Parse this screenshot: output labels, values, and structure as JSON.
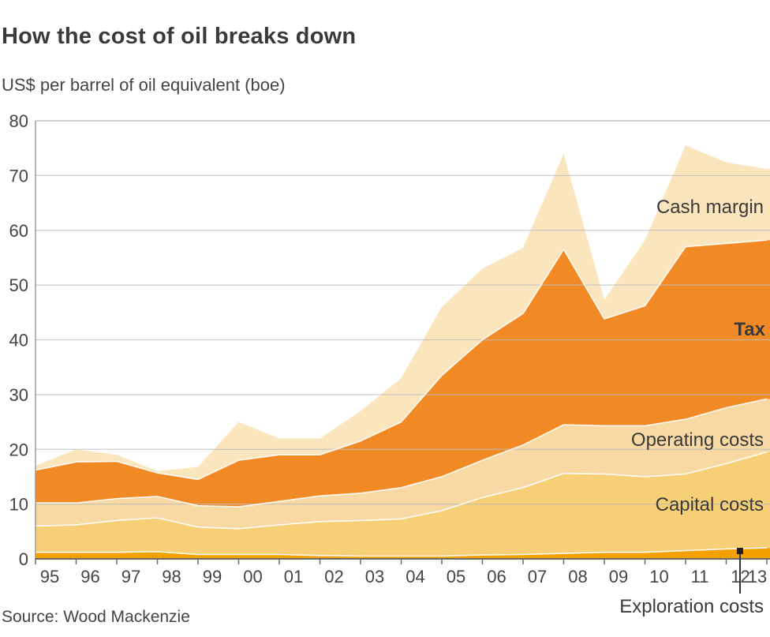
{
  "title": "How the cost of oil breaks down",
  "subtitle": "US$ per barrel of oil equivalent (boe)",
  "source": "Source: Wood Mackenzie",
  "colors": {
    "exploration": "#f2a100",
    "capital": "#f6cf76",
    "operating": "#f8d9a4",
    "tax": "#f18a24",
    "cash": "#fbe5bd",
    "grid": "#bdbdbd",
    "series_line": "#ffffff"
  },
  "chart_data": {
    "type": "area",
    "stacked": true,
    "x": [
      1995,
      1996,
      1997,
      1998,
      1999,
      2000,
      2001,
      2002,
      2003,
      2004,
      2005,
      2006,
      2007,
      2008,
      2009,
      2010,
      2011,
      2012,
      2013
    ],
    "x_tick_labels": [
      "95",
      "96",
      "97",
      "98",
      "99",
      "00",
      "01",
      "02",
      "03",
      "04",
      "05",
      "06",
      "07",
      "08",
      "09",
      "10",
      "11",
      "12",
      "13"
    ],
    "ylim": [
      0,
      80
    ],
    "y_ticks": [
      0,
      10,
      20,
      30,
      40,
      50,
      60,
      70,
      80
    ],
    "grid": true,
    "series": [
      {
        "name": "Exploration costs",
        "key": "exploration",
        "values": [
          1.2,
          1.2,
          1.2,
          1.3,
          0.8,
          0.8,
          0.8,
          0.6,
          0.5,
          0.5,
          0.5,
          0.7,
          0.8,
          1.0,
          1.2,
          1.2,
          1.5,
          1.8,
          2.0
        ]
      },
      {
        "name": "Capital costs",
        "key": "capital",
        "values": [
          4.8,
          5.0,
          5.8,
          6.2,
          5.0,
          4.7,
          5.4,
          6.2,
          6.5,
          6.8,
          8.3,
          10.5,
          12.2,
          14.6,
          14.3,
          13.8,
          14.0,
          15.6,
          17.5
        ]
      },
      {
        "name": "Operating costs",
        "key": "operating",
        "values": [
          4.2,
          4.0,
          4.0,
          3.9,
          3.9,
          4.0,
          4.3,
          4.7,
          5.0,
          5.7,
          6.2,
          6.8,
          7.8,
          8.9,
          8.8,
          9.3,
          10.0,
          10.2,
          9.7
        ]
      },
      {
        "name": "Tax",
        "key": "tax",
        "values": [
          6.0,
          7.5,
          6.8,
          4.3,
          4.8,
          8.5,
          8.5,
          7.5,
          9.5,
          12.0,
          18.5,
          22.0,
          24.0,
          32.0,
          19.5,
          21.9,
          31.5,
          30.0,
          29.0
        ]
      },
      {
        "name": "Cash margin",
        "key": "cash",
        "values": [
          0.8,
          2.3,
          1.2,
          0.3,
          2.3,
          7.0,
          3.0,
          3.0,
          5.5,
          8.0,
          12.5,
          13.0,
          12.0,
          17.5,
          3.5,
          12.0,
          18.5,
          14.8,
          13.0
        ]
      }
    ],
    "labels": {
      "cash": "Cash margin",
      "tax": "Tax",
      "operating": "Operating costs",
      "capital": "Capital costs",
      "exploration": "Exploration costs"
    }
  }
}
